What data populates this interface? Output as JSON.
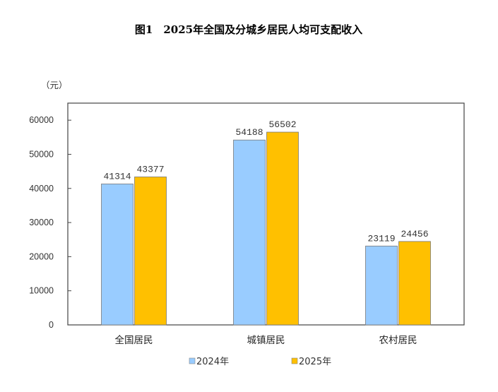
{
  "chart_data": {
    "type": "bar",
    "title": "图1　2025年全国及分城乡居民人均可支配收入",
    "ylabel": "（元）",
    "xlabel": "",
    "categories": [
      "全国居民",
      "城镇居民",
      "农村居民"
    ],
    "series": [
      {
        "name": "2024年",
        "values": [
          41314,
          54188,
          23119
        ],
        "color": "#99CCFF"
      },
      {
        "name": "2025年",
        "values": [
          43377,
          56502,
          24456
        ],
        "color": "#FFC000"
      }
    ],
    "ylim": [
      0,
      65000
    ],
    "yticks": [
      0,
      10000,
      20000,
      30000,
      40000,
      50000,
      60000
    ],
    "grid": false,
    "legend": "bottom"
  }
}
